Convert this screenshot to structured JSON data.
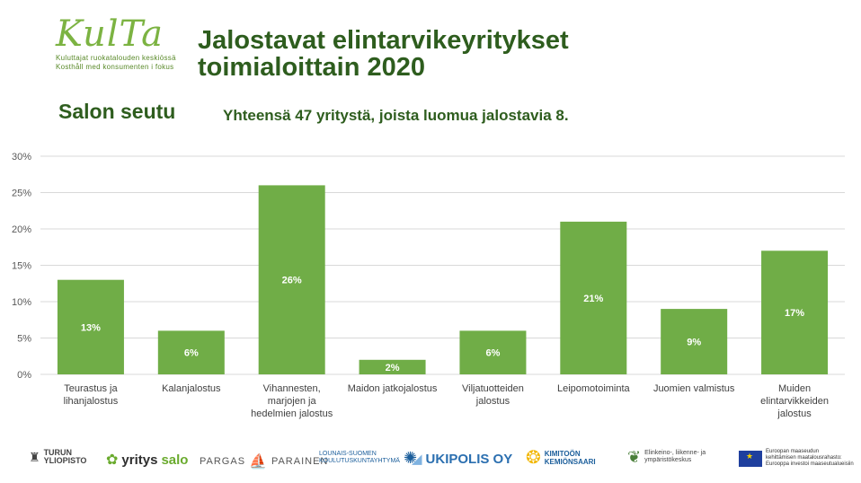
{
  "logo": {
    "word": "KulTa",
    "tagline_1": "Kuluttajat ruokatalouden keskiössä",
    "tagline_2": "Kosthåll med konsumenten i fokus"
  },
  "header": {
    "title_line1": "Jalostavat elintarvikeyritykset",
    "title_line2": "toimialoittain 2020",
    "region": "Salon seutu",
    "summary": "Yhteensä 47 yritystä, joista luomua jalostavia 8."
  },
  "chart_data": {
    "type": "bar",
    "title": "Jalostavat elintarvikeyritykset toimialoittain 2020",
    "categories": [
      [
        "Teurastus ja",
        "lihanjalostus"
      ],
      [
        "Kalanjalostus"
      ],
      [
        "Vihannesten,",
        "marjojen ja",
        "hedelmien jalostus"
      ],
      [
        "Maidon jatkojalostus"
      ],
      [
        "Viljatuotteiden",
        "jalostus"
      ],
      [
        "Leipomotoiminta"
      ],
      [
        "Juomien valmistus"
      ],
      [
        "Muiden",
        "elintarvikkeiden",
        "jalostus"
      ]
    ],
    "values": [
      13,
      6,
      26,
      2,
      6,
      21,
      9,
      17
    ],
    "data_labels": [
      "13%",
      "6%",
      "26%",
      "2%",
      "6%",
      "21%",
      "9%",
      "17%"
    ],
    "yticks": [
      "0%",
      "5%",
      "10%",
      "15%",
      "20%",
      "25%",
      "30%"
    ],
    "ylim": [
      0,
      30
    ],
    "bar_color": "#70ad47",
    "grid": true,
    "xlabel": "",
    "ylabel": ""
  },
  "partners": {
    "turku_1": "TURUN",
    "turku_2": "YLIOPISTO",
    "yritys_a": "yritys",
    "yritys_b": "salo",
    "pargas_a": "PARGAS",
    "pargas_b": "PARAINEN",
    "lounais_1": "LOUNAIS-SUOMEN",
    "lounais_2": "KOULUTUSKUNTAYHTYMÄ",
    "ukipolis": "UKIPOLIS OY",
    "kimito_1": "KIMITOÖN",
    "kimito_2": "KEMIÖNSAARI",
    "ely_1": "Elinkeino-, liikenne- ja",
    "ely_2": "ympäristökeskus",
    "eu_1": "Euroopan maaseudun",
    "eu_2": "kehittämisen maatalousrahasto:",
    "eu_3": "Eurooppa investoi maaseutualueisiin"
  }
}
